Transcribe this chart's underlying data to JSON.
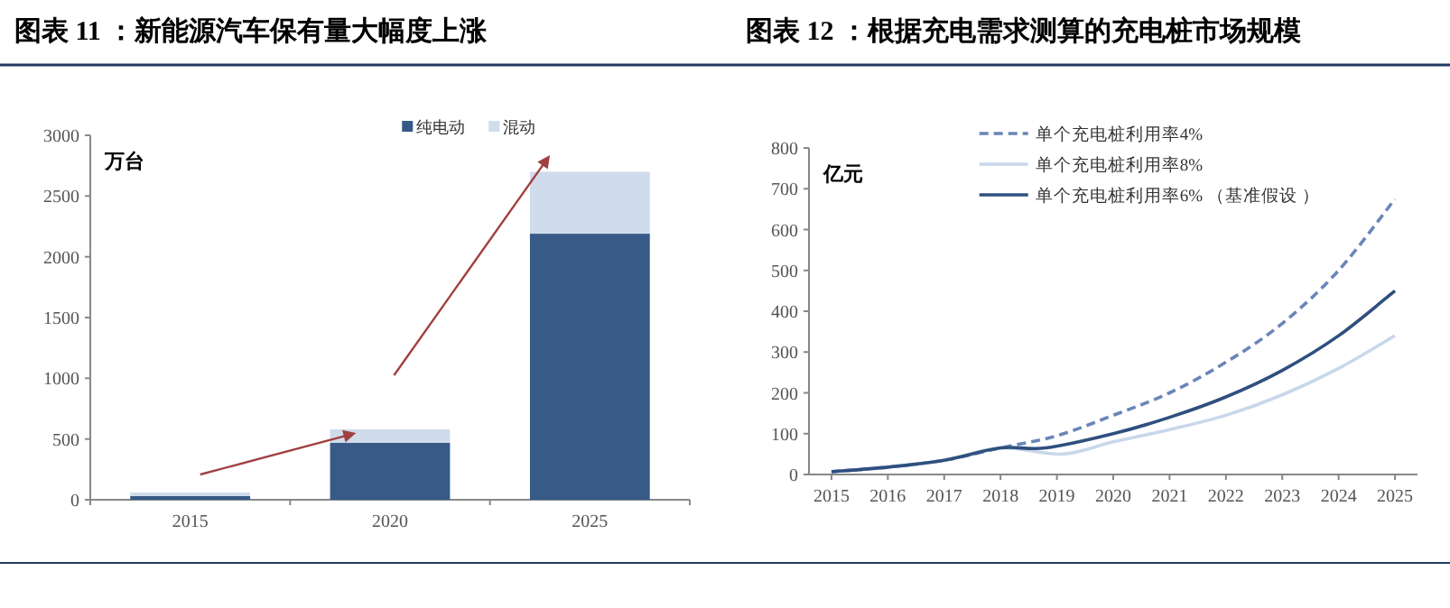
{
  "chart_data": [
    {
      "type": "bar",
      "title": "图表 11 ：新能源汽车保有量大幅度上涨",
      "ylabel": "万台",
      "categories": [
        "2015",
        "2020",
        "2025"
      ],
      "stacked": true,
      "series": [
        {
          "name": "纯电动",
          "color": "#375a87",
          "values": [
            30,
            470,
            2190
          ]
        },
        {
          "name": "混动",
          "color": "#d0dcec",
          "values": [
            30,
            110,
            510
          ]
        }
      ],
      "ylim": [
        0,
        3000
      ],
      "yticks": [
        0,
        500,
        1000,
        1500,
        2000,
        2500,
        3000
      ],
      "legend": "top"
    },
    {
      "type": "line",
      "title": "图表 12 ：根据充电需求测算的充电桩市场规模",
      "ylabel": "亿元",
      "series": [
        {
          "name": "单个充电桩利用率4%",
          "color": "#6a86b8",
          "line_style": "dashed",
          "x": [
            2015,
            2016,
            2017,
            2018,
            2019,
            2020,
            2021,
            2022,
            2023,
            2024,
            2025
          ],
          "values": [
            7,
            18,
            35,
            65,
            95,
            145,
            200,
            275,
            370,
            500,
            675
          ]
        },
        {
          "name": "单个充电桩利用率8%",
          "color": "#c9d7ea",
          "line_style": "solid",
          "x": [
            2015,
            2016,
            2017,
            2018,
            2019.1,
            2020,
            2021,
            2022,
            2023,
            2024,
            2025
          ],
          "values": [
            7,
            18,
            35,
            65,
            50,
            80,
            110,
            145,
            195,
            260,
            340
          ]
        },
        {
          "name": "单个充电桩利用率6%  （基准假设 ）",
          "color": "#2f4f7f",
          "line_style": "solid",
          "x": [
            2015,
            2016,
            2017,
            2018,
            2018.8,
            2020,
            2021,
            2022,
            2023,
            2024,
            2025
          ],
          "values": [
            7,
            18,
            35,
            65,
            65,
            100,
            140,
            190,
            255,
            340,
            450
          ]
        }
      ],
      "xlim": [
        2014.6,
        2025.4
      ],
      "xticks": [
        2015,
        2016,
        2017,
        2018,
        2019,
        2020,
        2021,
        2022,
        2023,
        2024,
        2025
      ],
      "ylim": [
        0,
        800
      ],
      "yticks": [
        0,
        100,
        200,
        300,
        400,
        500,
        600,
        700,
        800
      ],
      "legend": "top",
      "marker": "none"
    }
  ]
}
